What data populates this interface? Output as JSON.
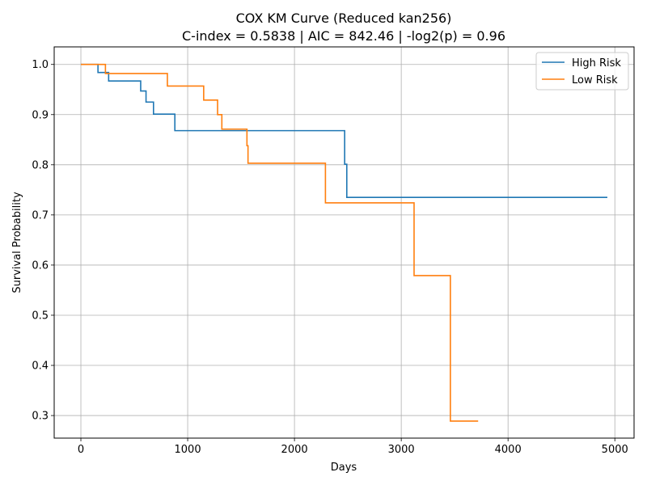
{
  "chart_data": {
    "type": "line",
    "title": "COX KM Curve (Reduced kan256)",
    "subtitle": "C-index = 0.5838 | AIC = 842.46 | -log2(p) = 0.96",
    "xlabel": "Days",
    "ylabel": "Survival Probability",
    "xlim": [
      -250,
      5180
    ],
    "ylim": [
      0.255,
      1.035
    ],
    "xticks": [
      0,
      1000,
      2000,
      3000,
      4000,
      5000
    ],
    "xtick_labels": [
      "0",
      "1000",
      "2000",
      "3000",
      "4000",
      "5000"
    ],
    "yticks": [
      0.3,
      0.4,
      0.5,
      0.6,
      0.7,
      0.8,
      0.9,
      1.0
    ],
    "ytick_labels": [
      "0.3",
      "0.4",
      "0.5",
      "0.6",
      "0.7",
      "0.8",
      "0.9",
      "1.0"
    ],
    "grid": true,
    "legend_position": "top-right",
    "step": "post",
    "series": [
      {
        "name": "High Risk",
        "color": "#1f77b4",
        "x": [
          0,
          160,
          260,
          560,
          610,
          680,
          880,
          2470,
          2490,
          4930
        ],
        "y": [
          1.0,
          0.984,
          0.967,
          0.947,
          0.925,
          0.901,
          0.868,
          0.801,
          0.735,
          0.735
        ]
      },
      {
        "name": "Low Risk",
        "color": "#ff7f0e",
        "x": [
          0,
          230,
          810,
          1150,
          1280,
          1320,
          1555,
          1565,
          2290,
          3120,
          3460,
          3720
        ],
        "y": [
          1.0,
          0.982,
          0.957,
          0.929,
          0.9,
          0.871,
          0.838,
          0.803,
          0.724,
          0.579,
          0.289,
          0.289
        ]
      }
    ]
  }
}
